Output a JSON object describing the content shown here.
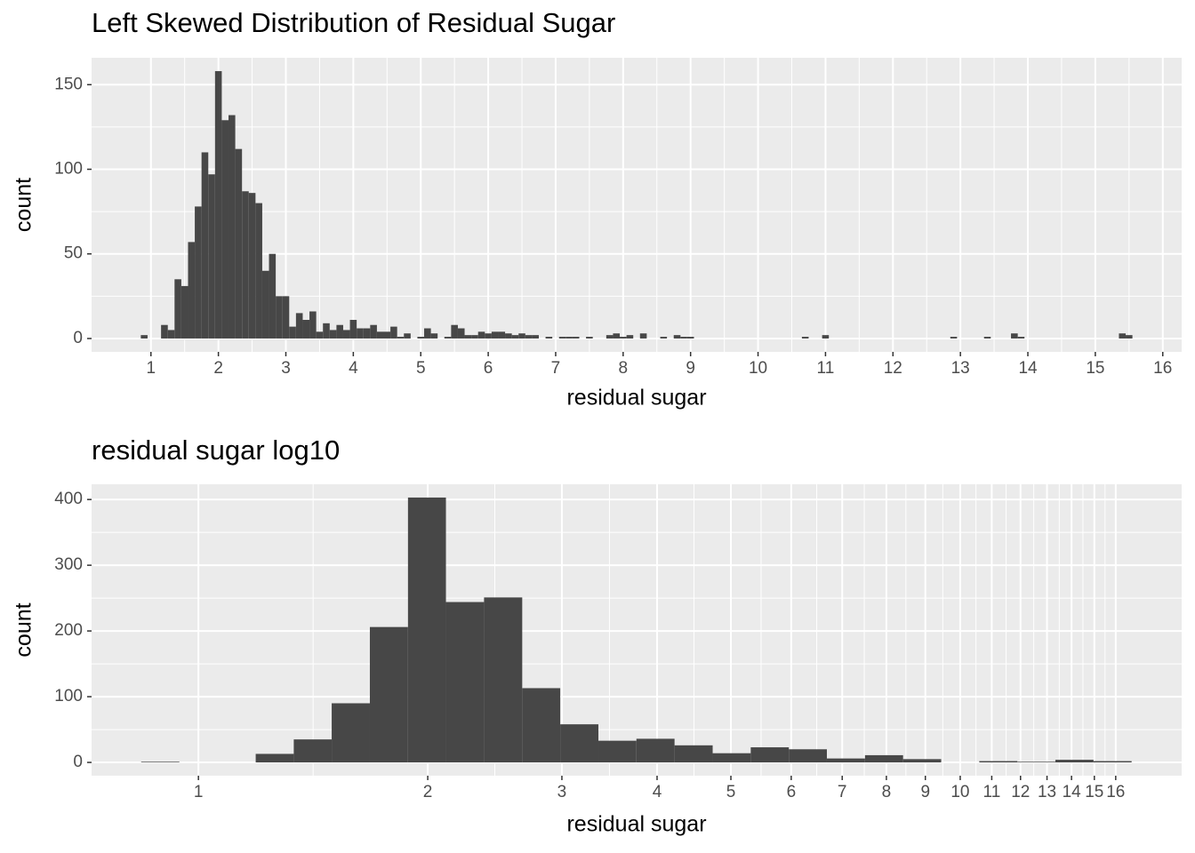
{
  "chart_data": [
    {
      "type": "histogram",
      "title": "Left Skewed Distribution of Residual Sugar",
      "xlabel": "residual sugar",
      "ylabel": "count",
      "color": "#474747",
      "grid": true,
      "minor_grid": true,
      "log_x": false,
      "xlim": [
        0.12,
        16.28
      ],
      "ylim": [
        -7.9,
        165.9
      ],
      "xticks": [
        1,
        2,
        3,
        4,
        5,
        6,
        7,
        8,
        9,
        10,
        11,
        12,
        13,
        14,
        15,
        16
      ],
      "yticks": [
        0,
        50,
        100,
        150
      ],
      "bins": [
        0.85,
        0.95,
        1.05,
        1.15,
        1.25,
        1.35,
        1.45,
        1.55,
        1.65,
        1.75,
        1.85,
        1.95,
        2.05,
        2.15,
        2.25,
        2.35,
        2.45,
        2.55,
        2.65,
        2.75,
        2.85,
        2.95,
        3.05,
        3.15,
        3.25,
        3.35,
        3.45,
        3.55,
        3.65,
        3.75,
        3.85,
        3.95,
        4.05,
        4.15,
        4.25,
        4.35,
        4.45,
        4.55,
        4.65,
        4.75,
        4.85,
        4.95,
        5.05,
        5.15,
        5.25,
        5.35,
        5.45,
        5.55,
        5.65,
        5.75,
        5.85,
        5.95,
        6.05,
        6.15,
        6.25,
        6.35,
        6.45,
        6.55,
        6.65,
        6.75,
        6.85,
        6.95,
        7.05,
        7.15,
        7.25,
        7.35,
        7.45,
        7.55,
        7.65,
        7.75,
        7.85,
        7.95,
        8.05,
        8.15,
        8.25,
        8.35,
        8.45,
        8.55,
        8.65,
        8.75,
        8.85,
        8.95,
        9.05,
        9.15,
        9.25,
        9.35,
        9.45,
        9.55,
        9.65,
        9.75,
        9.85,
        9.95,
        10.05,
        10.15,
        10.25,
        10.35,
        10.45,
        10.55,
        10.65,
        10.75,
        10.85,
        10.95,
        11.05,
        11.15,
        11.25,
        11.35,
        11.45,
        11.55,
        11.65,
        11.75,
        11.85,
        11.95,
        12.05,
        12.15,
        12.25,
        12.35,
        12.45,
        12.55,
        12.65,
        12.75,
        12.85,
        12.95,
        13.05,
        13.15,
        13.25,
        13.35,
        13.45,
        13.55,
        13.65,
        13.75,
        13.85,
        13.95,
        14.05,
        14.15,
        14.25,
        14.35,
        14.45,
        14.55,
        14.65,
        14.75,
        14.85,
        14.95,
        15.05,
        15.15,
        15.25,
        15.35,
        15.45,
        15.55
      ],
      "counts": [
        2,
        0,
        0,
        8,
        5,
        35,
        31,
        57,
        78,
        110,
        97,
        158,
        129,
        132,
        112,
        87,
        86,
        80,
        40,
        50,
        25,
        25,
        7,
        15,
        11,
        16,
        4,
        9,
        5,
        8,
        5,
        11,
        6,
        6,
        8,
        4,
        4,
        7,
        1,
        3,
        0,
        1,
        6,
        3,
        0,
        1,
        8,
        6,
        2,
        2,
        4,
        3,
        4,
        4,
        3,
        2,
        3,
        2,
        2,
        0,
        1,
        0,
        1,
        1,
        1,
        0,
        1,
        0,
        0,
        2,
        3,
        1,
        2,
        0,
        3,
        0,
        0,
        1,
        0,
        2,
        1,
        1,
        0,
        0,
        0,
        0,
        0,
        0,
        0,
        0,
        0,
        0,
        0,
        0,
        0,
        0,
        0,
        0,
        1,
        0,
        0,
        2,
        0,
        0,
        0,
        0,
        0,
        0,
        0,
        0,
        0,
        0,
        0,
        0,
        0,
        0,
        0,
        0,
        0,
        0,
        1,
        0,
        0,
        0,
        0,
        1,
        0,
        0,
        0,
        3,
        1,
        0,
        0,
        0,
        0,
        0,
        0,
        0,
        0,
        0,
        0,
        0,
        0,
        0,
        0,
        3,
        2
      ]
    },
    {
      "type": "histogram",
      "title": "residual sugar log10",
      "xlabel": "residual sugar",
      "ylabel": "count",
      "color": "#474747",
      "grid": true,
      "minor_grid": true,
      "log_x": true,
      "xlim": [
        0.724,
        19.53
      ],
      "ylim": [
        -20.2,
        423.2
      ],
      "xticks": [
        1,
        2,
        3,
        4,
        5,
        6,
        7,
        8,
        9,
        10,
        11,
        12,
        13,
        14,
        15,
        16
      ],
      "yticks": [
        0,
        100,
        200,
        300,
        400
      ],
      "bins": [
        0.841,
        0.944,
        1.059,
        1.189,
        1.334,
        1.496,
        1.679,
        1.884,
        2.113,
        2.371,
        2.661,
        2.985,
        3.35,
        3.758,
        4.217,
        4.732,
        5.309,
        5.957,
        6.683,
        7.499,
        8.414,
        9.441,
        10.593,
        11.885,
        13.335,
        14.962,
        16.788
      ],
      "counts": [
        1,
        0,
        0,
        13,
        35,
        90,
        206,
        403,
        244,
        251,
        113,
        58,
        33,
        36,
        26,
        14,
        23,
        20,
        6,
        11,
        5,
        0,
        2,
        1,
        4,
        2
      ]
    }
  ]
}
